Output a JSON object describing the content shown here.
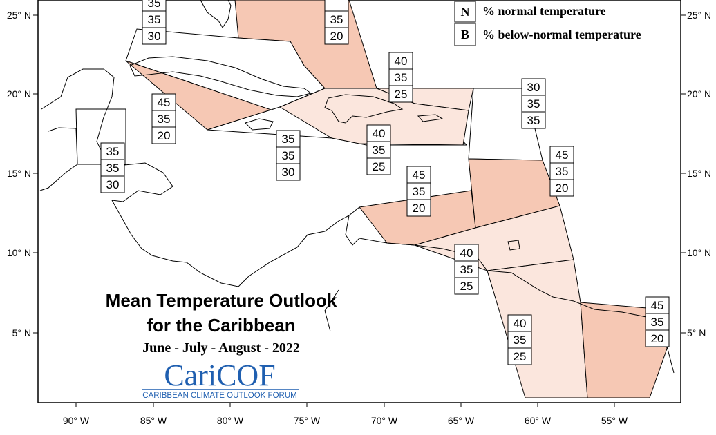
{
  "map": {
    "x_ticks": [
      "90° W",
      "85° W",
      "80° W",
      "75° W",
      "70° W",
      "65° W",
      "60° W",
      "55° W"
    ],
    "y_ticks": [
      "25° N",
      "20° N",
      "15° N",
      "10° N",
      "5° N"
    ],
    "colors": {
      "above_45": "#f6c8b4",
      "above_40": "#fbe6dd",
      "normal_35": "#ffffff",
      "coast": "#000000",
      "logo_blue": "#1f5fb0"
    }
  },
  "legend": {
    "items": [
      {
        "key": "N",
        "text": "% normal temperature"
      },
      {
        "key": "B",
        "text": "% below-normal temperature"
      }
    ]
  },
  "title": {
    "line1": "Mean Temperature Outlook",
    "line2": "for the Caribbean",
    "period": "June - July - August - 2022"
  },
  "logo": {
    "name": "CariCOF",
    "tagline": "CARIBBEAN CLIMATE OUTLOOK FORUM"
  },
  "regions": [
    {
      "name": "bahamas",
      "above": "",
      "normal": "35",
      "below": "20"
    },
    {
      "name": "cayman-turks-west",
      "above": "35",
      "normal": "35",
      "below": "30"
    },
    {
      "name": "cuba",
      "above": "45",
      "normal": "35",
      "below": "20"
    },
    {
      "name": "belize-honduras",
      "above": "35",
      "normal": "35",
      "below": "30"
    },
    {
      "name": "jamaica",
      "above": "35",
      "normal": "35",
      "below": "30"
    },
    {
      "name": "hispaniola-north",
      "above": "40",
      "normal": "35",
      "below": "25"
    },
    {
      "name": "hispaniola-south",
      "above": "40",
      "normal": "35",
      "below": "25"
    },
    {
      "name": "bermuda-east",
      "above": "30",
      "normal": "35",
      "below": "35"
    },
    {
      "name": "leeward-islands",
      "above": "45",
      "normal": "35",
      "below": "20"
    },
    {
      "name": "abc-islands",
      "above": "45",
      "normal": "35",
      "below": "20"
    },
    {
      "name": "trinidad-venezuela",
      "above": "40",
      "normal": "35",
      "below": "25"
    },
    {
      "name": "guyana",
      "above": "40",
      "normal": "35",
      "below": "25"
    },
    {
      "name": "suriname-french-guiana",
      "above": "45",
      "normal": "35",
      "below": "20"
    }
  ]
}
